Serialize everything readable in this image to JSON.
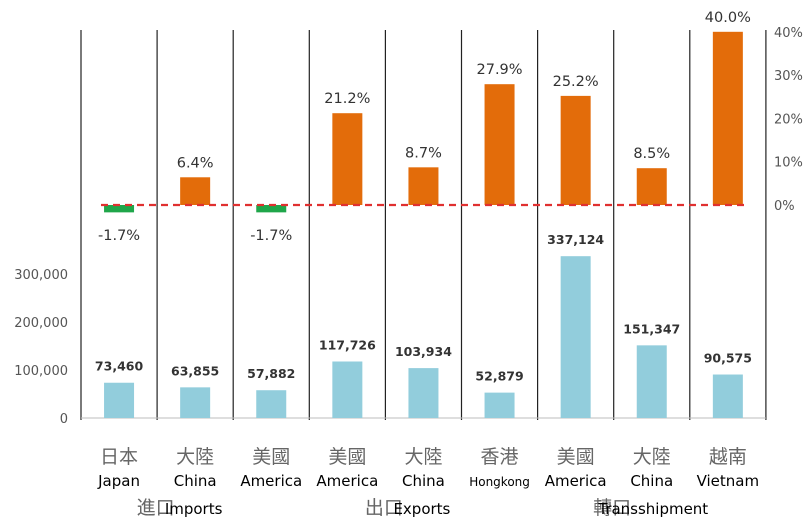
{
  "chart_data": {
    "type": "bar",
    "categories": [
      {
        "zh": "日本",
        "en": "Japan"
      },
      {
        "zh": "大陸",
        "en": "China"
      },
      {
        "zh": "美國",
        "en": "America"
      },
      {
        "zh": "美國",
        "en": "America"
      },
      {
        "zh": "大陸",
        "en": "China"
      },
      {
        "zh": "香港",
        "en": "Hongkong"
      },
      {
        "zh": "美國",
        "en": "America"
      },
      {
        "zh": "大陸",
        "en": "China"
      },
      {
        "zh": "越南",
        "en": "Vietnam"
      }
    ],
    "groups": [
      {
        "zh": "進口",
        "en": "Imports",
        "start": 0,
        "end": 2
      },
      {
        "zh": "出口",
        "en": "Exports",
        "start": 3,
        "end": 5
      },
      {
        "zh": "轉口",
        "en": "Transshipment",
        "start": 6,
        "end": 8
      }
    ],
    "series": [
      {
        "axis": "left",
        "color": "#92cddc",
        "values": [
          73460,
          63855,
          57882,
          117726,
          103934,
          52879,
          337124,
          151347,
          90575
        ],
        "labels": [
          "73,460",
          "63,855",
          "57,882",
          "117,726",
          "103,934",
          "52,879",
          "337,124",
          "151,347",
          "90,575"
        ]
      },
      {
        "axis": "right",
        "color_positive": "#e36c0a",
        "color_negative": "#1fa64a",
        "values": [
          -1.7,
          6.4,
          -1.7,
          21.2,
          8.7,
          27.9,
          25.2,
          8.5,
          40.0
        ],
        "labels": [
          "-1.7%",
          "6.4%",
          "-1.7%",
          "21.2%",
          "8.7%",
          "27.9%",
          "25.2%",
          "8.5%",
          "40.0%"
        ]
      }
    ],
    "left_axis": {
      "ticks": [
        "0",
        "100,000",
        "200,000",
        "300,000"
      ],
      "tick_values": [
        0,
        100000,
        200000,
        300000
      ]
    },
    "right_axis": {
      "ticks": [
        "0%",
        "10%",
        "20%",
        "30%",
        "40%"
      ],
      "tick_values": [
        0,
        10,
        20,
        30,
        40
      ]
    },
    "zero_line_color": "#e03030",
    "xlabel": "",
    "ylabel": ""
  }
}
